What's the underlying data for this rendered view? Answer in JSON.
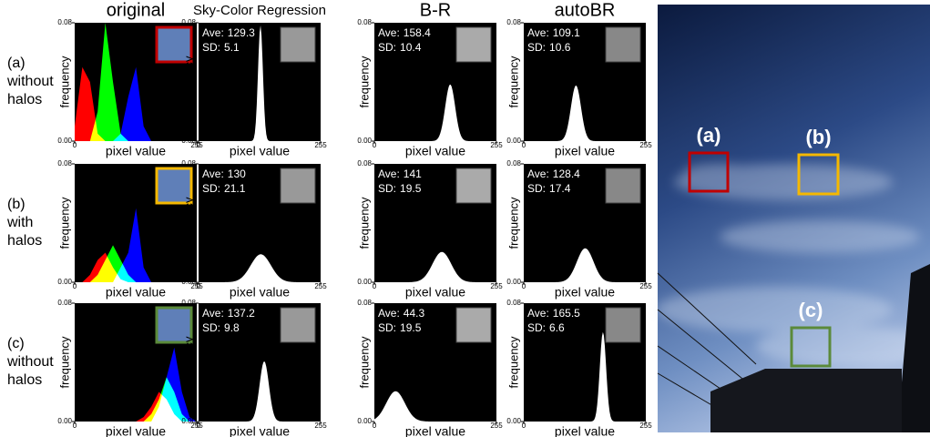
{
  "columns": [
    "original",
    "Sky-Color Regression",
    "B-R",
    "autoBR"
  ],
  "y_label": "frequency",
  "x_label": "pixel value",
  "x_ticks": [
    0,
    255
  ],
  "y_ticks": [
    {
      "value": 0,
      "label": "0.00"
    },
    {
      "value": 0.08,
      "label": "0.08"
    }
  ],
  "stat_labels": [
    "Ave:",
    "SD:"
  ],
  "x": [
    0,
    16,
    32,
    48,
    64,
    80,
    96,
    112,
    128,
    144,
    160,
    176,
    192,
    208,
    224,
    240,
    255
  ],
  "rows": [
    {
      "label": "(a)",
      "desc": [
        "without",
        "halos"
      ],
      "box_color": "#c00000",
      "original": {
        "series": [
          {
            "color": "#ff0000",
            "values": [
              0.01,
              0.05,
              0.04,
              0.005,
              0,
              0,
              0,
              0,
              0,
              0,
              0,
              0,
              0,
              0,
              0,
              0,
              0
            ]
          },
          {
            "color": "#00ff00",
            "values": [
              0,
              0,
              0,
              0.02,
              0.08,
              0.04,
              0.005,
              0,
              0,
              0,
              0,
              0,
              0,
              0,
              0,
              0,
              0
            ]
          },
          {
            "color": "#0000ff",
            "values": [
              0,
              0,
              0,
              0,
              0,
              0,
              0.005,
              0.03,
              0.05,
              0.01,
              0,
              0,
              0,
              0,
              0,
              0,
              0
            ]
          }
        ]
      },
      "stats": [
        {
          "ave": 129.3,
          "sd": 5.1
        },
        {
          "ave": 158.4,
          "sd": 10.4
        },
        {
          "ave": 109.1,
          "sd": 10.6
        }
      ]
    },
    {
      "label": "(b)",
      "desc": [
        "with",
        "halos"
      ],
      "box_color": "#f5b800",
      "original": {
        "series": [
          {
            "color": "#ff0000",
            "values": [
              0,
              0,
              0.005,
              0.015,
              0.02,
              0.01,
              0.002,
              0,
              0,
              0,
              0,
              0,
              0,
              0,
              0,
              0,
              0
            ]
          },
          {
            "color": "#00ff00",
            "values": [
              0,
              0,
              0,
              0.005,
              0.015,
              0.025,
              0.015,
              0.005,
              0,
              0,
              0,
              0,
              0,
              0,
              0,
              0,
              0
            ]
          },
          {
            "color": "#0000ff",
            "values": [
              0,
              0,
              0,
              0,
              0,
              0,
              0.01,
              0.02,
              0.05,
              0.01,
              0,
              0,
              0,
              0,
              0,
              0,
              0
            ]
          }
        ]
      },
      "stats": [
        {
          "ave": 130.0,
          "sd": 21.1
        },
        {
          "ave": 141.0,
          "sd": 19.5
        },
        {
          "ave": 128.4,
          "sd": 17.4
        }
      ]
    },
    {
      "label": "(c)",
      "desc": [
        "without",
        "halos"
      ],
      "box_color": "#5b8a3a",
      "original": {
        "series": [
          {
            "color": "#ff0000",
            "values": [
              0,
              0,
              0,
              0,
              0,
              0,
              0,
              0,
              0,
              0.003,
              0.01,
              0.02,
              0.015,
              0.005,
              0,
              0,
              0
            ]
          },
          {
            "color": "#00ff00",
            "values": [
              0,
              0,
              0,
              0,
              0,
              0,
              0,
              0,
              0,
              0,
              0.005,
              0.015,
              0.03,
              0.02,
              0.005,
              0,
              0
            ]
          },
          {
            "color": "#0000ff",
            "values": [
              0,
              0,
              0,
              0,
              0,
              0,
              0,
              0,
              0,
              0,
              0,
              0.01,
              0.03,
              0.05,
              0.02,
              0.003,
              0
            ]
          }
        ]
      },
      "stats": [
        {
          "ave": 137.2,
          "sd": 9.8
        },
        {
          "ave": 44.3,
          "sd": 19.5
        },
        {
          "ave": 165.5,
          "sd": 6.6
        }
      ]
    }
  ]
}
